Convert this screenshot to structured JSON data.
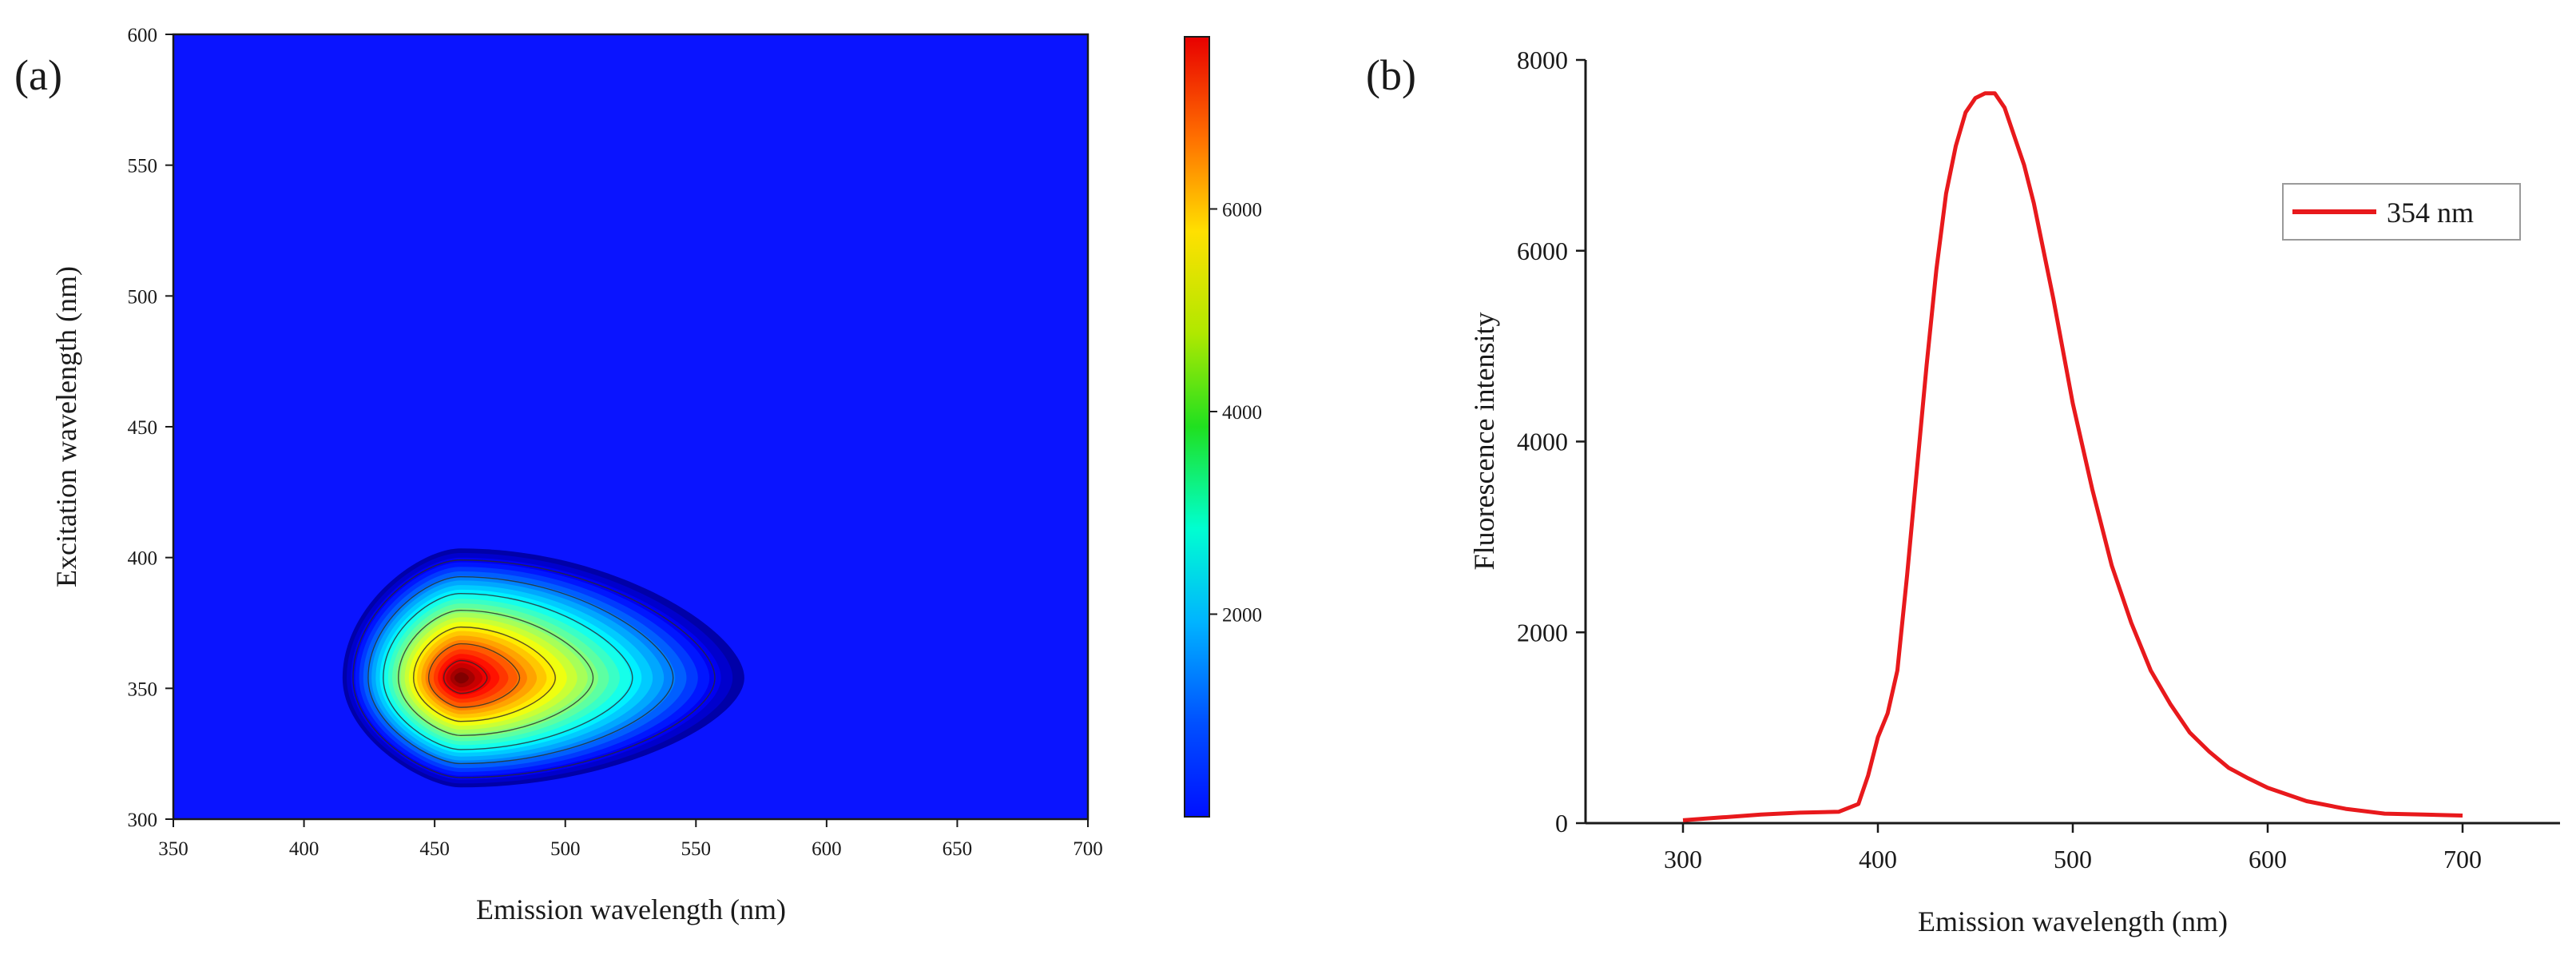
{
  "figure": {
    "panel_a_label": "(a)",
    "panel_b_label": "(b)"
  },
  "colors": {
    "line": "#e8191c",
    "axis": "#1a1a1a",
    "background_low": "#0a14ff",
    "contour_line": "#2a2a2a"
  },
  "chart_data": [
    {
      "type": "heatmap",
      "xlabel": "Emission wavelength (nm)",
      "ylabel": "Excitation wavelength (nm)",
      "xlim": [
        350,
        700
      ],
      "ylim": [
        300,
        600
      ],
      "xticks": [
        350,
        400,
        450,
        500,
        550,
        600,
        650,
        700
      ],
      "yticks": [
        300,
        350,
        400,
        450,
        500,
        550,
        600
      ],
      "colormap": "jet",
      "color_range": [
        0,
        7700
      ],
      "colorbar_ticks": [
        2000,
        4000,
        6000
      ],
      "peak": {
        "emission": 460,
        "excitation": 354,
        "intensity": 7700
      },
      "contour_levels": [
        1000,
        2000,
        3000,
        4000,
        5000,
        6000,
        7000
      ]
    },
    {
      "type": "line",
      "xlabel": "Emission wavelength (nm)",
      "ylabel": "Fluorescence intensity",
      "xlim": [
        250,
        750
      ],
      "ylim": [
        0,
        8000
      ],
      "xticks": [
        300,
        400,
        500,
        600,
        700
      ],
      "yticks": [
        0,
        2000,
        4000,
        6000,
        8000
      ],
      "legend_position": "top-right",
      "series": [
        {
          "name": "354 nm",
          "x": [
            300,
            320,
            340,
            360,
            380,
            390,
            395,
            400,
            405,
            410,
            415,
            420,
            425,
            430,
            435,
            440,
            445,
            450,
            455,
            460,
            465,
            470,
            475,
            480,
            490,
            500,
            510,
            520,
            530,
            540,
            550,
            560,
            570,
            580,
            590,
            600,
            620,
            640,
            660,
            680,
            700
          ],
          "y": [
            30,
            60,
            90,
            110,
            120,
            200,
            500,
            900,
            1150,
            1600,
            2600,
            3700,
            4800,
            5800,
            6600,
            7100,
            7450,
            7600,
            7650,
            7650,
            7500,
            7200,
            6900,
            6500,
            5500,
            4400,
            3500,
            2700,
            2100,
            1600,
            1250,
            950,
            750,
            580,
            470,
            370,
            230,
            150,
            100,
            90,
            80
          ]
        }
      ]
    }
  ]
}
